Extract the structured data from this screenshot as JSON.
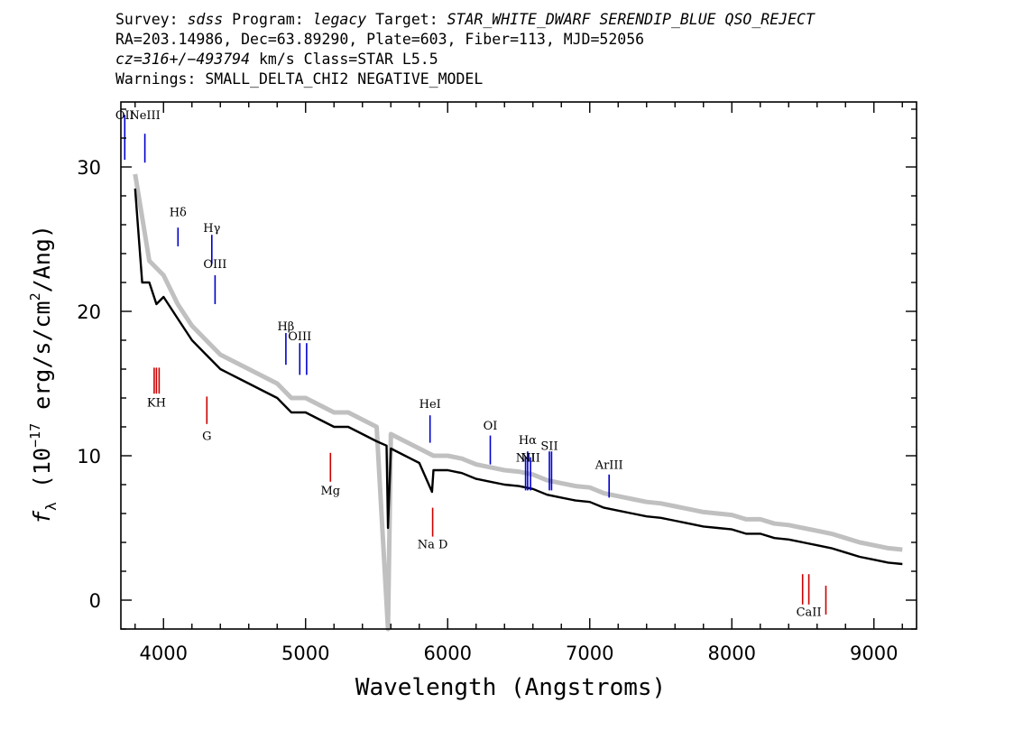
{
  "header": {
    "line1": {
      "survey_label": "Survey: ",
      "survey": "sdss",
      "program_label": " Program: ",
      "program": "legacy",
      "target_label": " Target: ",
      "target": "STAR_WHITE_DWARF SERENDIP_BLUE QSO_REJECT"
    },
    "line2": "RA=203.14986, Dec=63.89290, Plate=603, Fiber=113, MJD=52056",
    "line3": {
      "cz": "cz=316+/−493794",
      "rest": " km/s Class=STAR L5.5"
    },
    "line4": "Warnings: SMALL_DELTA_CHI2 NEGATIVE_MODEL"
  },
  "chart_data": {
    "type": "line",
    "xlabel": "Wavelength (Angstroms)",
    "ylabel_parts": [
      "f",
      "λ",
      " (10",
      "−17",
      " erg/s/cm",
      "2",
      "/Ang)"
    ],
    "xlim": [
      3700,
      9300
    ],
    "ylim": [
      -2,
      34.5
    ],
    "x_ticks": [
      4000,
      5000,
      6000,
      7000,
      8000,
      9000
    ],
    "y_ticks": [
      0,
      10,
      20,
      30
    ],
    "grid": false,
    "colors": {
      "spectrum": "#000000",
      "noise": "#c0c0c0",
      "emission": "#0000cc",
      "absorption": "#cc0000"
    },
    "series": [
      {
        "style": "black",
        "x": [
          3800,
          3850,
          3900,
          3950,
          4000,
          4100,
          4200,
          4300,
          4400,
          4500,
          4600,
          4700,
          4800,
          4900,
          5000,
          5100,
          5200,
          5300,
          5400,
          5500,
          5570,
          5580,
          5600,
          5700,
          5800,
          5890,
          5900,
          6000,
          6100,
          6200,
          6300,
          6400,
          6500,
          6600,
          6700,
          6800,
          6900,
          7000,
          7100,
          7200,
          7300,
          7400,
          7500,
          7600,
          7700,
          7800,
          7900,
          8000,
          8100,
          8200,
          8300,
          8400,
          8500,
          8600,
          8700,
          8800,
          8900,
          9000,
          9100,
          9200
        ],
        "y": [
          28.5,
          22.0,
          22.0,
          20.5,
          21.0,
          19.5,
          18.0,
          17.0,
          16.0,
          15.5,
          15.0,
          14.5,
          14.0,
          13.0,
          13.0,
          12.5,
          12.0,
          12.0,
          11.5,
          11.0,
          10.7,
          5.0,
          10.5,
          10.0,
          9.5,
          7.5,
          9.0,
          9.0,
          8.8,
          8.4,
          8.2,
          8.0,
          7.9,
          7.7,
          7.3,
          7.1,
          6.9,
          6.8,
          6.4,
          6.2,
          6.0,
          5.8,
          5.7,
          5.5,
          5.3,
          5.1,
          5.0,
          4.9,
          4.6,
          4.6,
          4.3,
          4.2,
          4.0,
          3.8,
          3.6,
          3.3,
          3.0,
          2.8,
          2.6,
          2.5
        ]
      },
      {
        "style": "gray",
        "x": [
          3800,
          3900,
          4000,
          4100,
          4200,
          4300,
          4400,
          4500,
          4600,
          4700,
          4800,
          4900,
          5000,
          5100,
          5200,
          5300,
          5400,
          5500,
          5580,
          5600,
          5700,
          5800,
          5900,
          6000,
          6100,
          6200,
          6300,
          6400,
          6500,
          6600,
          6700,
          6800,
          6900,
          7000,
          7100,
          7200,
          7300,
          7400,
          7500,
          7600,
          7700,
          7800,
          7900,
          8000,
          8100,
          8200,
          8300,
          8400,
          8500,
          8600,
          8700,
          8800,
          8900,
          9000,
          9100,
          9200
        ],
        "y": [
          29.5,
          23.5,
          22.5,
          20.5,
          19.0,
          18.0,
          17.0,
          16.5,
          16.0,
          15.5,
          15.0,
          14.0,
          14.0,
          13.5,
          13.0,
          13.0,
          12.5,
          12.0,
          -2.0,
          11.5,
          11.0,
          10.5,
          10.0,
          10.0,
          9.8,
          9.4,
          9.2,
          9.0,
          8.9,
          8.7,
          8.3,
          8.1,
          7.9,
          7.8,
          7.4,
          7.2,
          7.0,
          6.8,
          6.7,
          6.5,
          6.3,
          6.1,
          6.0,
          5.9,
          5.6,
          5.6,
          5.3,
          5.2,
          5.0,
          4.8,
          4.6,
          4.3,
          4.0,
          3.8,
          3.6,
          3.5
        ]
      }
    ],
    "lines": [
      {
        "label": "OII",
        "x": 3727,
        "kind": "emission",
        "y_top": 33.6,
        "y_bot": 30.5,
        "label_y": 33.3
      },
      {
        "label": "NeIII",
        "x": 3869,
        "kind": "emission",
        "y_top": 32.3,
        "y_bot": 30.3,
        "label_y": 33.3
      },
      {
        "label": "Hδ",
        "x": 4102,
        "kind": "emission",
        "y_top": 25.8,
        "y_bot": 24.5,
        "label_y": 26.6
      },
      {
        "label": "Hγ",
        "x": 4340,
        "kind": "emission",
        "y_top": 25.3,
        "y_bot": 23.3,
        "label_y": 25.5
      },
      {
        "label": "OIII",
        "x": 4363,
        "kind": "emission",
        "y_top": 22.5,
        "y_bot": 20.5,
        "label_y": 23.0
      },
      {
        "label": "Hβ",
        "x": 4861,
        "kind": "emission",
        "y_top": 18.5,
        "y_bot": 16.3,
        "label_y": 18.7
      },
      {
        "label": "OIII",
        "x": 4959,
        "kind": "emission",
        "y_top": 17.8,
        "y_bot": 15.6,
        "label_y": 18.0
      },
      {
        "label": "",
        "x": 5007,
        "kind": "emission",
        "y_top": 17.8,
        "y_bot": 15.6,
        "label_y": 0
      },
      {
        "label": "HeI",
        "x": 5876,
        "kind": "emission",
        "y_top": 12.8,
        "y_bot": 10.9,
        "label_y": 13.3
      },
      {
        "label": "OI",
        "x": 6300,
        "kind": "emission",
        "y_top": 11.4,
        "y_bot": 9.4,
        "label_y": 11.8
      },
      {
        "label": "NII",
        "x": 6548,
        "kind": "emission",
        "y_top": 9.9,
        "y_bot": 7.6,
        "label_y": 9.6
      },
      {
        "label": "Hα",
        "x": 6563,
        "kind": "emission",
        "y_top": 10.3,
        "y_bot": 7.6,
        "label_y": 10.8
      },
      {
        "label": "NII",
        "x": 6583,
        "kind": "emission",
        "y_top": 9.9,
        "y_bot": 7.6,
        "label_y": 9.6
      },
      {
        "label": "SII",
        "x": 6716,
        "kind": "emission",
        "y_top": 10.3,
        "y_bot": 7.6,
        "label_y": 10.4
      },
      {
        "label": "",
        "x": 6731,
        "kind": "emission",
        "y_top": 10.3,
        "y_bot": 7.6,
        "label_y": 0
      },
      {
        "label": "ArIII",
        "x": 7136,
        "kind": "emission",
        "y_top": 8.7,
        "y_bot": 7.1,
        "label_y": 9.1
      },
      {
        "label": "KH",
        "x": 3950,
        "kind": "absorption",
        "y_top": 16.1,
        "y_bot": 14.3,
        "label_y": 13.4
      },
      {
        "label": "",
        "x": 3934,
        "kind": "absorption",
        "y_top": 16.1,
        "y_bot": 14.3,
        "label_y": 0
      },
      {
        "label": "",
        "x": 3969,
        "kind": "absorption",
        "y_top": 16.1,
        "y_bot": 14.3,
        "label_y": 0
      },
      {
        "label": "G",
        "x": 4305,
        "kind": "absorption",
        "y_top": 14.1,
        "y_bot": 12.2,
        "label_y": 11.1
      },
      {
        "label": "Mg",
        "x": 5175,
        "kind": "absorption",
        "y_top": 10.2,
        "y_bot": 8.2,
        "label_y": 7.3
      },
      {
        "label": "Na D",
        "x": 5894,
        "kind": "absorption",
        "y_top": 6.4,
        "y_bot": 4.4,
        "label_y": 3.6
      },
      {
        "label": "CaII",
        "x": 8542,
        "kind": "absorption",
        "y_top": 1.8,
        "y_bot": -0.3,
        "label_y": -1.1
      },
      {
        "label": "",
        "x": 8498,
        "kind": "absorption",
        "y_top": 1.8,
        "y_bot": -0.3,
        "label_y": 0
      },
      {
        "label": "",
        "x": 8662,
        "kind": "absorption",
        "y_top": 1.0,
        "y_bot": -1.0,
        "label_y": 0
      }
    ]
  }
}
